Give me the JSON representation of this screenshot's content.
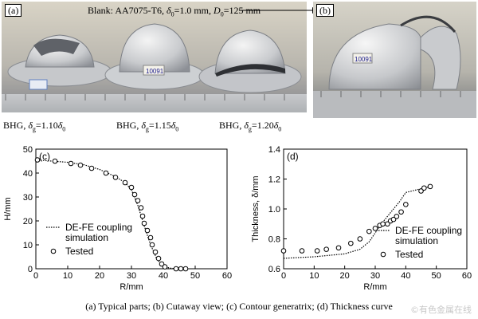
{
  "photo_a": {
    "tag": "(a)",
    "blank_line": "Blank: AA7075-T6, δ0=1.0 mm, D0=125 mm",
    "labels": [
      "BHG, δg=1.10δ0",
      "BHG, δg=1.15δ0",
      "BHG, δg=1.20δ0"
    ],
    "part_marks": [
      "10091"
    ]
  },
  "photo_b": {
    "tag": "(b)",
    "part_mark": "10091"
  },
  "chart_c": {
    "tag": "(c)",
    "legend": {
      "sim": "DE-FE coupling",
      "sim2": "simulation",
      "tested": "Tested"
    }
  },
  "chart_d": {
    "tag": "(d)",
    "legend": {
      "sim": "DE-FE coupling",
      "sim2": "simulation",
      "tested": "Tested"
    }
  },
  "chart_data": [
    {
      "type": "scatter",
      "xlabel": "R/mm",
      "ylabel": "H/mm",
      "xlim": [
        0,
        60
      ],
      "ylim": [
        0,
        50
      ],
      "xticks": [
        0,
        10,
        20,
        30,
        40,
        50,
        60
      ],
      "yticks": [
        0,
        10,
        20,
        30,
        40,
        50
      ],
      "series": [
        {
          "name": "DE-FE coupling simulation",
          "style": "dotted-line",
          "x": [
            0,
            5,
            10,
            15,
            20,
            25,
            28,
            30,
            32,
            34,
            36,
            38,
            40,
            42,
            44,
            48
          ],
          "y": [
            45.5,
            45,
            44.5,
            43.5,
            41.5,
            38.5,
            36,
            33,
            26.5,
            18,
            10,
            4,
            1,
            0.3,
            0,
            0
          ]
        },
        {
          "name": "Tested",
          "style": "open-circle",
          "x": [
            0.5,
            6,
            11,
            14,
            17.5,
            22,
            25,
            28,
            30,
            31,
            32,
            33,
            33.5,
            34,
            35,
            36,
            36.5,
            37.5,
            38.5,
            39.5,
            40.5,
            44,
            45.5,
            47
          ],
          "y": [
            45.5,
            45,
            44,
            43.3,
            42,
            40,
            38.2,
            36,
            34,
            31,
            28.5,
            25.5,
            22,
            19,
            16,
            13,
            10,
            7,
            4.3,
            2,
            0.8,
            0,
            0,
            0
          ]
        }
      ]
    },
    {
      "type": "scatter",
      "xlabel": "R/mm",
      "ylabel": "Thickness, δ/mm",
      "xlim": [
        0,
        60
      ],
      "ylim": [
        0.6,
        1.4
      ],
      "xticks": [
        0,
        10,
        20,
        30,
        40,
        50,
        60
      ],
      "yticks": [
        0.6,
        0.8,
        1.0,
        1.2,
        1.4
      ],
      "series": [
        {
          "name": "DE-FE coupling simulation",
          "style": "dotted-line",
          "x": [
            0,
            10,
            20,
            25,
            28,
            30,
            32,
            34,
            36,
            38,
            40,
            42,
            44,
            46,
            48
          ],
          "y": [
            0.67,
            0.68,
            0.7,
            0.73,
            0.78,
            0.84,
            0.9,
            0.95,
            1.0,
            1.05,
            1.11,
            1.12,
            1.13,
            1.14,
            1.15
          ]
        },
        {
          "name": "Tested",
          "style": "open-circle",
          "x": [
            0,
            6,
            11,
            14,
            18,
            22,
            25,
            28,
            30,
            31.5,
            32.5,
            34,
            35,
            36,
            37,
            38.5,
            40,
            45,
            46,
            48
          ],
          "y": [
            0.72,
            0.72,
            0.72,
            0.73,
            0.74,
            0.77,
            0.8,
            0.85,
            0.87,
            0.89,
            0.9,
            0.9,
            0.92,
            0.93,
            0.95,
            0.98,
            1.03,
            1.12,
            1.14,
            1.15
          ]
        }
      ]
    }
  ],
  "caption": "(a) Typical parts; (b) Cutaway view; (c) Contour generatrix; (d) Thickness curve",
  "watermark": "©有色金属在线"
}
